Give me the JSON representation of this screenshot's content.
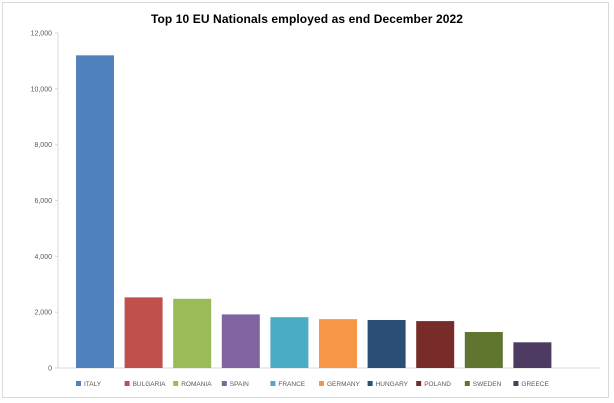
{
  "chart_data": {
    "type": "bar",
    "title": "Top 10 EU Nationals employed as end December 2022",
    "xlabel": "",
    "ylabel": "",
    "categories": [
      "ITALY",
      "BULGARIA",
      "ROMANIA",
      "SPAIN",
      "FRANCE",
      "GERMANY",
      "HUNGARY",
      "POLAND",
      "SWEDEN",
      "GREECE"
    ],
    "values": [
      11200,
      2530,
      2480,
      1920,
      1820,
      1750,
      1720,
      1680,
      1290,
      920
    ],
    "colors": [
      "#4f81bd",
      "#c0504d",
      "#9bbb59",
      "#8064a2",
      "#4bacc6",
      "#f79646",
      "#2c4d75",
      "#772c2a",
      "#5f7530",
      "#4d3b62"
    ],
    "ylim": [
      0,
      12000
    ],
    "yticks": [
      0,
      2000,
      4000,
      6000,
      8000,
      10000,
      12000
    ],
    "ytick_labels": [
      "0",
      "2,000",
      "4,000",
      "6,000",
      "8,000",
      "10,000",
      "12,000"
    ],
    "grid": false,
    "legend": "bottom"
  }
}
